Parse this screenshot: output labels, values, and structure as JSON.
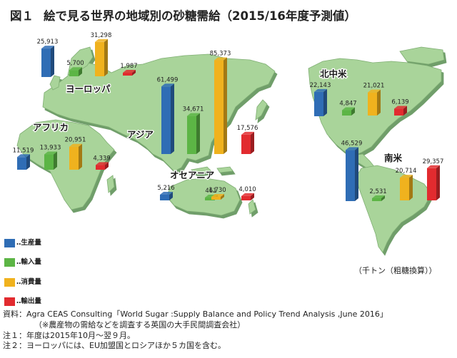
{
  "title": {
    "figure_no": "図１",
    "text": "絵で見る世界の地域別の砂糖需給（2015/16年度予測値）"
  },
  "chart_data": {
    "type": "bar",
    "categories": [
      "生産量",
      "輸入量",
      "消費量",
      "輸出量"
    ],
    "colors": [
      "#2f6db5",
      "#5cb545",
      "#f0b21e",
      "#e22b2f"
    ],
    "unit": "（千トン（粗糖換算））",
    "regions": [
      {
        "name": "ヨーロッパ",
        "values": [
          25913,
          5700,
          31298,
          1987
        ],
        "value_labels": [
          "25,913",
          "5,700",
          "31,298",
          "1,987"
        ]
      },
      {
        "name": "アジア",
        "values": [
          61499,
          34671,
          85373,
          17576
        ],
        "value_labels": [
          "61,499",
          "34,671",
          "85,373",
          "17,576"
        ]
      },
      {
        "name": "アフリカ",
        "values": [
          11519,
          13933,
          20951,
          4339
        ],
        "value_labels": [
          "11,519",
          "13,933",
          "20,951",
          "4,339"
        ]
      },
      {
        "name": "オセアニア",
        "values": [
          5216,
          461,
          1730,
          4010
        ],
        "value_labels": [
          "5,216",
          "461",
          "1,730",
          "4,010"
        ]
      },
      {
        "name": "北中米",
        "values": [
          22143,
          4847,
          21021,
          6139
        ],
        "value_labels": [
          "22,143",
          "4,847",
          "21,021",
          "6,139"
        ]
      },
      {
        "name": "南米",
        "values": [
          46529,
          2531,
          20714,
          29357
        ],
        "value_labels": [
          "46,529",
          "2,531",
          "20,714",
          "29,357"
        ]
      }
    ]
  },
  "legend": [
    {
      "label": "生産量",
      "color": "#2f6db5"
    },
    {
      "label": "輸入量",
      "color": "#5cb545"
    },
    {
      "label": "消費量",
      "color": "#f0b21e"
    },
    {
      "label": "輸出量",
      "color": "#e22b2f"
    }
  ],
  "unit_label": "（千トン（粗糖換算））",
  "notes": {
    "source": "資料：Agra CEAS Consulting「World Sugar :Supply Balance and Policy Trend Analysis ,June 2016」",
    "source_sub": "（※農産物の需給などを調査する英国の大手民間調査会社）",
    "note1": "注１：年度は2015年10月～翌９月。",
    "note2": "注２：ヨーロッパには、EU加盟国とロシアほか５カ国を含む。"
  },
  "map": {
    "land_color": "#a9d49a",
    "land_shadow_color": "#6f9e6a"
  }
}
